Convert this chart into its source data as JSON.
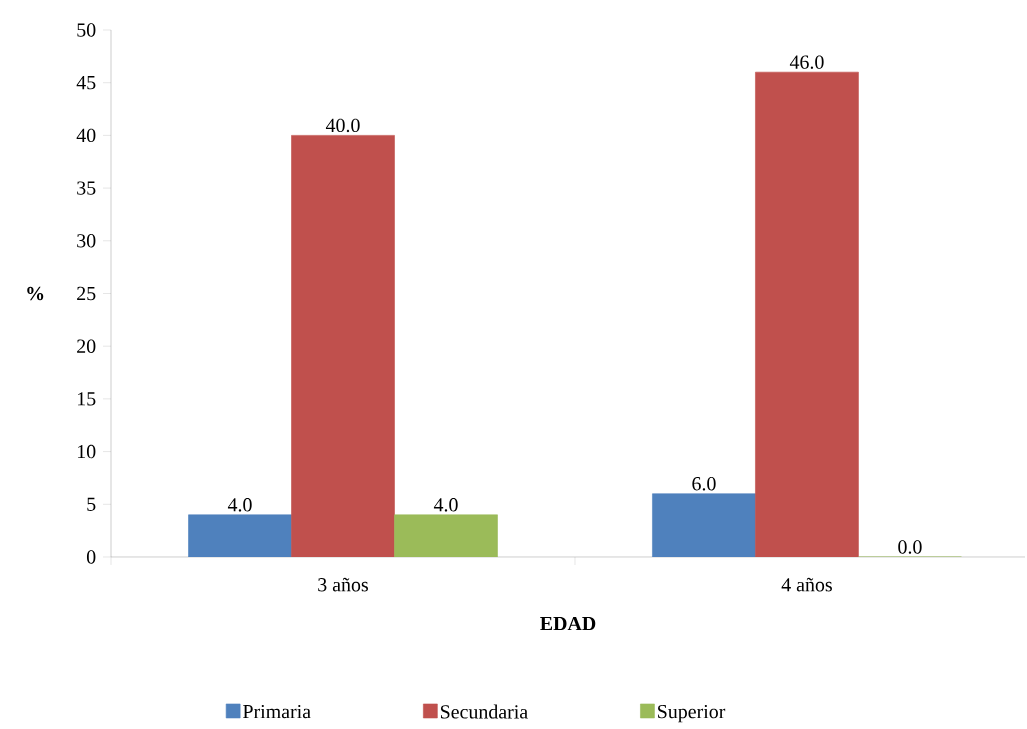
{
  "chart_data": {
    "type": "bar",
    "xlabel": "EDAD",
    "ylabel": "%",
    "categories": [
      "3 años",
      "4 años"
    ],
    "series": [
      {
        "name": "Primaria",
        "color": "#4f81bd",
        "values": [
          4.0,
          6.0
        ],
        "value_labels": [
          "4.0",
          "6.0"
        ]
      },
      {
        "name": "Secundaria",
        "color": "#c0504d",
        "values": [
          40.0,
          46.0
        ],
        "value_labels": [
          "40.0",
          "46.0"
        ]
      },
      {
        "name": "Superior",
        "color": "#9bbb59",
        "values": [
          4.0,
          0.0
        ],
        "value_labels": [
          "4.0",
          "0.0"
        ]
      }
    ],
    "ylim": [
      0,
      50
    ],
    "yticks": [
      0,
      5,
      10,
      15,
      20,
      25,
      30,
      35,
      40,
      45,
      50
    ],
    "grid": false,
    "legend": "bottom"
  }
}
